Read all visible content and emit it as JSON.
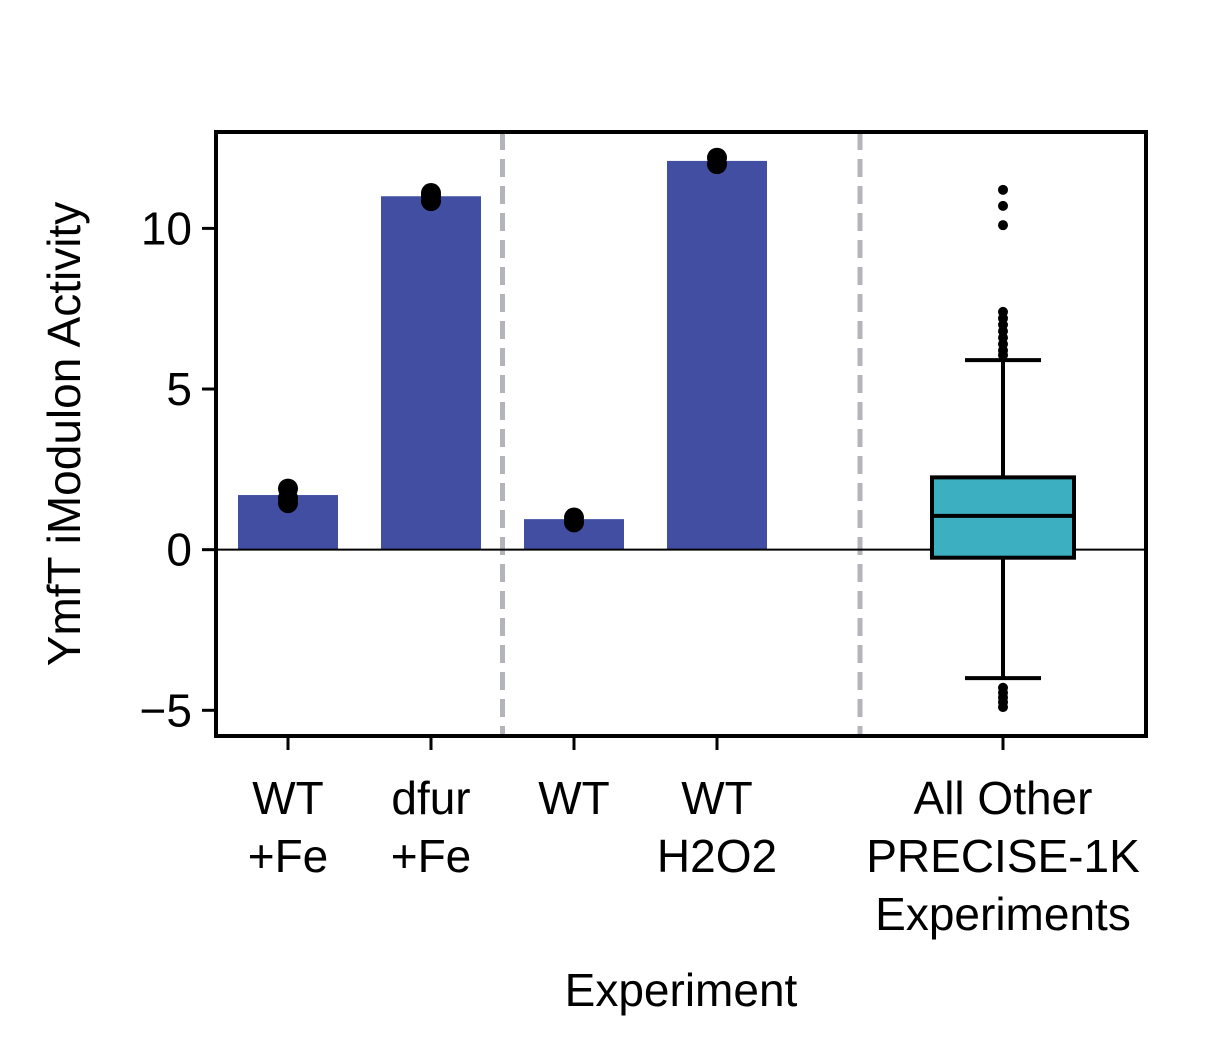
{
  "chart_data": {
    "type": "bar",
    "xlabel": "Experiment",
    "ylabel": "YmfT iModulon Activity",
    "ylim": [
      -5.8,
      13.0
    ],
    "yticks": [
      -5,
      0,
      5,
      10
    ],
    "ytick_labels": [
      "−5",
      "0",
      "5",
      "10"
    ],
    "grid": false,
    "zero_line": true,
    "bar_color": "#414ea2",
    "point_color": "#000000",
    "box_color": "#3cb0c0",
    "separator_color": "#b4b5ba",
    "categories": [
      {
        "lines": [
          "WT",
          "+Fe"
        ],
        "value": 1.7,
        "points": [
          1.45,
          1.6,
          1.9
        ]
      },
      {
        "lines": [
          "dfur",
          "+Fe"
        ],
        "value": 11.0,
        "points": [
          10.85,
          11.0,
          11.1
        ]
      },
      {
        "lines": [
          "WT"
        ],
        "value": 0.95,
        "points": [
          0.85,
          1.0
        ]
      },
      {
        "lines": [
          "WT",
          "H2O2"
        ],
        "value": 12.1,
        "points": [
          12.0,
          12.2
        ]
      }
    ],
    "separators_after": [
      1,
      3
    ],
    "boxplot": {
      "lines": [
        "All Other",
        "PRECISE-1K",
        "Experiments"
      ],
      "whisker_low": -4.0,
      "q1": -0.25,
      "median": 1.05,
      "q3": 2.25,
      "whisker_high": 5.9,
      "outliers": [
        11.2,
        10.7,
        10.1,
        7.4,
        7.2,
        7.0,
        6.8,
        6.6,
        6.4,
        6.2,
        6.05,
        -4.3,
        -4.45,
        -4.6,
        -4.75,
        -4.9
      ]
    }
  }
}
